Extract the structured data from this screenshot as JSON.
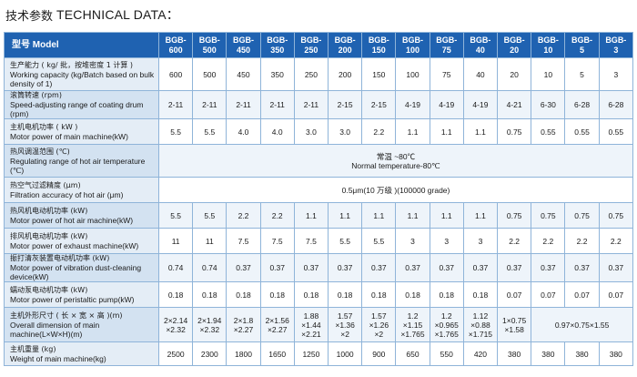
{
  "heading": {
    "cn": "技术参数",
    "en": "TECHNICAL DATA："
  },
  "table": {
    "model_header": "型号 Model",
    "models": [
      "BGB-\n600",
      "BGB-\n500",
      "BGB-\n450",
      "BGB-\n350",
      "BGB-\n250",
      "BGB-\n200",
      "BGB-\n150",
      "BGB-\n100",
      "BGB-\n75",
      "BGB-\n40",
      "BGB-\n20",
      "BGB-\n10",
      "BGB-\n5",
      "BGB-\n3"
    ],
    "rows": [
      {
        "cn": "生产能力 ( kg/ 批，按堆密度 1 计算 )",
        "en": "Working capacity (kg/Batch based on bulk density of 1)",
        "values": [
          "600",
          "500",
          "450",
          "350",
          "250",
          "200",
          "150",
          "100",
          "75",
          "40",
          "20",
          "10",
          "5",
          "3"
        ]
      },
      {
        "cn": "滚筒转速 (rpm)",
        "en": "Speed-adjusting range of coating drum (rpm)",
        "values": [
          "2-11",
          "2-11",
          "2-11",
          "2-11",
          "2-11",
          "2-15",
          "2-15",
          "4-19",
          "4-19",
          "4-19",
          "4-21",
          "6-30",
          "6-28",
          "6-28"
        ]
      },
      {
        "cn": "主机电机功率 ( kW )",
        "en": "Motor power of main machine(kW)",
        "values": [
          "5.5",
          "5.5",
          "4.0",
          "4.0",
          "3.0",
          "3.0",
          "2.2",
          "1.1",
          "1.1",
          "1.1",
          "0.75",
          "0.55",
          "0.55",
          "0.55"
        ]
      },
      {
        "cn": "热风调温范围 (℃)",
        "en": "Regulating range of hot air temperature (℃)",
        "merged": [
          "常温 ~80℃",
          "Normal temperature-80℃"
        ]
      },
      {
        "cn": "热空气过滤精度 (μm)",
        "en": "Filtration accuracy of hot air (μm)",
        "merged": [
          "0.5μm(10 万级 )(100000 grade)"
        ]
      },
      {
        "cn": "热风机电动机功率 (kW)",
        "en": "Motor power of hot air machine(kW)",
        "values": [
          "5.5",
          "5.5",
          "2.2",
          "2.2",
          "1.1",
          "1.1",
          "1.1",
          "1.1",
          "1.1",
          "1.1",
          "0.75",
          "0.75",
          "0.75",
          "0.75"
        ]
      },
      {
        "cn": "排风机电动机功率 (kW)",
        "en": "Motor power of exhaust machine(kW)",
        "values": [
          "11",
          "11",
          "7.5",
          "7.5",
          "7.5",
          "5.5",
          "5.5",
          "3",
          "3",
          "3",
          "2.2",
          "2.2",
          "2.2",
          "2.2"
        ]
      },
      {
        "cn": "振打清灰装置电动机功率 (kW)",
        "en": "Motor power of vibration dust-cleaning device(kW)",
        "values": [
          "0.74",
          "0.74",
          "0.37",
          "0.37",
          "0.37",
          "0.37",
          "0.37",
          "0.37",
          "0.37",
          "0.37",
          "0.37",
          "0.37",
          "0.37",
          "0.37"
        ]
      },
      {
        "cn": "蠕动泵电动机功率 (kW)",
        "en": "Motor power of peristaltic pump(kW)",
        "values": [
          "0.18",
          "0.18",
          "0.18",
          "0.18",
          "0.18",
          "0.18",
          "0.18",
          "0.18",
          "0.18",
          "0.18",
          "0.07",
          "0.07",
          "0.07",
          "0.07"
        ]
      },
      {
        "cn": "主机外形尺寸 ( 长 × 宽 × 高 )(m)",
        "en": "Overall dimension of main machine(L×W×H)(m)",
        "dims": [
          "2×2.14\n×2.32",
          "2×1.94\n×2.32",
          "2×1.8\n×2.27",
          "2×1.56\n×2.27",
          "1.88\n×1.44\n×2.21",
          "1.57\n×1.36\n×2",
          "1.57\n×1.26\n×2",
          "1.2\n×1.15\n×1.765",
          "1.2\n×0.965\n×1.765",
          "1.12\n×0.88\n×1.715",
          "1×0.75\n×1.58"
        ],
        "dims_merged": "0.97×0.75×1.55"
      },
      {
        "cn": "主机重量 (kg)",
        "en": "Weight of main machine(kg)",
        "values": [
          "2500",
          "2300",
          "1800",
          "1650",
          "1250",
          "1000",
          "900",
          "650",
          "550",
          "420",
          "380",
          "380",
          "380",
          "380"
        ]
      }
    ]
  }
}
